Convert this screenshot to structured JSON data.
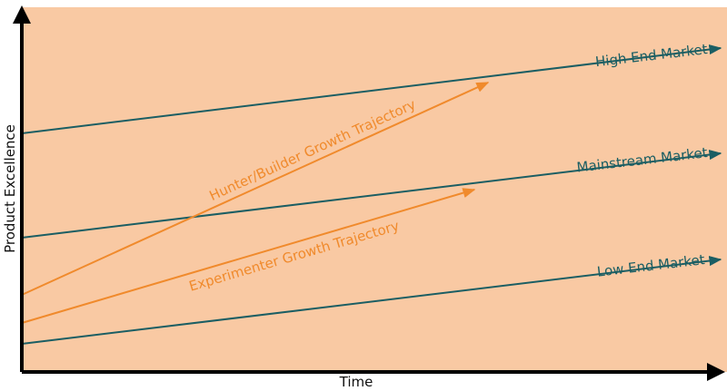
{
  "diagram": {
    "colors": {
      "background": "#f9c9a3",
      "market_line": "#1b5e63",
      "trajectory_line": "#f08a2c",
      "axis": "#000000"
    },
    "axes": {
      "x_label": "Time",
      "y_label": "Product Excellence"
    },
    "markets": [
      {
        "label": "High End Market"
      },
      {
        "label": "Mainstream Market"
      },
      {
        "label": "Low End Market"
      }
    ],
    "trajectories": [
      {
        "label": "Hunter/Builder Growth Trajectory"
      },
      {
        "label": "Experimenter Growth Trajectory"
      }
    ]
  }
}
